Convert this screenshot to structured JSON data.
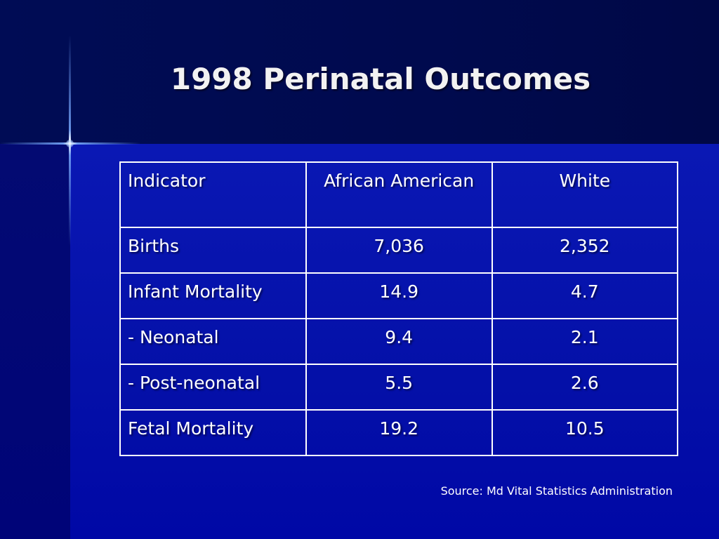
{
  "slide": {
    "title": "1998 Perinatal Outcomes",
    "source": "Source: Md Vital Statistics Administration"
  },
  "table": {
    "headers": [
      "Indicator",
      "African American",
      "White"
    ],
    "rows": [
      [
        "Births",
        "7,036",
        "2,352"
      ],
      [
        "Infant Mortality",
        "14.9",
        "4.7"
      ],
      [
        "- Neonatal",
        "9.4",
        "2.1"
      ],
      [
        "- Post-neonatal",
        "5.5",
        "2.6"
      ],
      [
        "Fetal Mortality",
        "19.2",
        "10.5"
      ]
    ]
  },
  "colors": {
    "background_top": "#000a4c",
    "background_main": "#0a14a0",
    "text": "#ffffff",
    "table_border": "#ffffff"
  }
}
